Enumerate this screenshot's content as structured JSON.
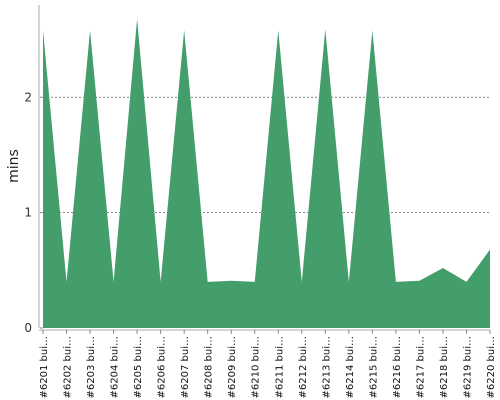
{
  "chart_data": {
    "type": "area",
    "title": "",
    "xlabel": "",
    "ylabel": "mins",
    "ylim": [
      0,
      2.8
    ],
    "yticks": [
      0,
      1,
      2
    ],
    "grid": "horizontal dashed",
    "fill_color": "#449e6b",
    "categories": [
      "#6201 bui…",
      "#6202 bui…",
      "#6203 bui…",
      "#6204 bui…",
      "#6205 bui…",
      "#6206 bui…",
      "#6207 bui…",
      "#6208 bui…",
      "#6209 bui…",
      "#6210 bui…",
      "#6211 bui…",
      "#6212 bui…",
      "#6213 bui…",
      "#6214 bui…",
      "#6215 bui…",
      "#6216 bui…",
      "#6217 bui…",
      "#6218 bui…",
      "#6219 bui…",
      "#6220 bui…"
    ],
    "series": [
      {
        "values": [
          2.58,
          0.4,
          2.58,
          0.4,
          2.68,
          0.4,
          2.58,
          0.4,
          0.41,
          0.4,
          2.58,
          0.4,
          2.59,
          0.4,
          2.58,
          0.4,
          0.41,
          0.52,
          0.4,
          0.68
        ]
      }
    ]
  }
}
